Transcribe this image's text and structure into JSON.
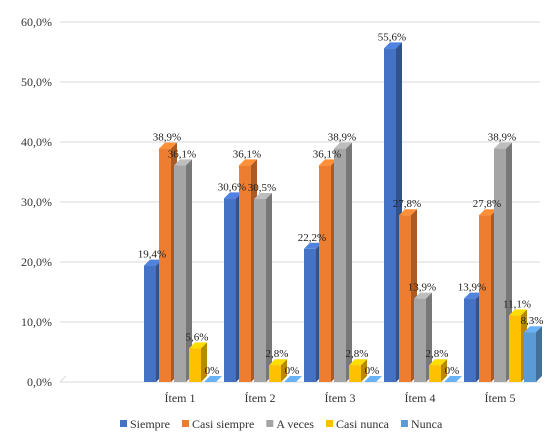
{
  "chart_data": {
    "type": "bar",
    "categories": [
      "Ítem 1",
      "Ítem 2",
      "Ítem 3",
      "Ítem 4",
      "Ítem 5"
    ],
    "series": [
      {
        "name": "Siempre",
        "color": "#4472C4",
        "values": [
          19.4,
          30.6,
          22.2,
          55.6,
          13.9
        ],
        "labels": [
          "19,4%",
          "30,6%",
          "22,2%",
          "55,6%",
          "13,9%"
        ]
      },
      {
        "name": "Casi siempre",
        "color": "#ED7D31",
        "values": [
          38.9,
          36.1,
          36.1,
          27.8,
          27.8
        ],
        "labels": [
          "38,9%",
          "36,1%",
          "36,1%",
          "27,8%",
          "27,8%"
        ]
      },
      {
        "name": "A veces",
        "color": "#A5A5A5",
        "values": [
          36.1,
          30.5,
          38.9,
          13.9,
          38.9
        ],
        "labels": [
          "36,1%",
          "30,5%",
          "38,9%",
          "13,9%",
          "38,9%"
        ]
      },
      {
        "name": "Casi nunca",
        "color": "#FFC000",
        "values": [
          5.6,
          2.8,
          2.8,
          2.8,
          11.1
        ],
        "labels": [
          "5,6%",
          "2,8%",
          "2,8%",
          "2,8%",
          "11,1%"
        ]
      },
      {
        "name": "Nunca",
        "color": "#5B9BD5",
        "values": [
          0,
          0,
          0,
          0,
          8.3
        ],
        "labels": [
          "0%",
          "0%",
          "0%",
          "0%",
          "8,3%"
        ]
      }
    ],
    "ylim": [
      0,
      60
    ],
    "yticks": [
      {
        "value": 0,
        "label": "0,0%"
      },
      {
        "value": 10,
        "label": "10,0%"
      },
      {
        "value": 20,
        "label": "20,0%"
      },
      {
        "value": 30,
        "label": "30,0%"
      },
      {
        "value": 40,
        "label": "40,0%"
      },
      {
        "value": 50,
        "label": "50,0%"
      },
      {
        "value": 60,
        "label": "60,0%"
      }
    ],
    "grid": true,
    "legend_position": "bottom",
    "style": "3d-clustered-bar"
  }
}
